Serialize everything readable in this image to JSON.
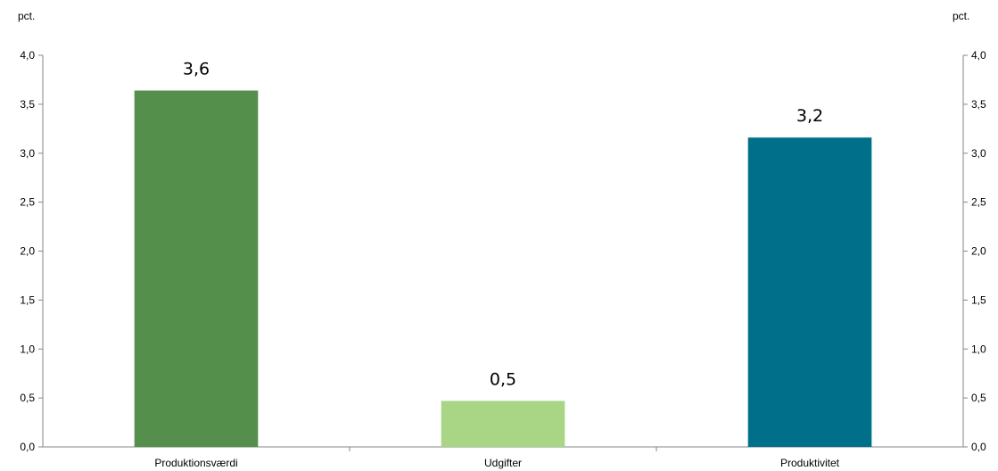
{
  "chart_data": {
    "type": "bar",
    "unit_left": "pct.",
    "unit_right": "pct.",
    "categories": [
      "Produktionsværdi",
      "Udgifter",
      "Produktivitet"
    ],
    "values": [
      3.64,
      0.47,
      3.16
    ],
    "data_labels": [
      "3,6",
      "0,5",
      "3,2"
    ],
    "colors": [
      "#548f4c",
      "#a9d684",
      "#00708a"
    ],
    "ylim": [
      0,
      4.0
    ],
    "yticks": [
      "0,0",
      "0,5",
      "1,0",
      "1,5",
      "2,0",
      "2,5",
      "3,0",
      "3,5",
      "4,0"
    ],
    "ytick_values": [
      0,
      0.5,
      1.0,
      1.5,
      2.0,
      2.5,
      3.0,
      3.5,
      4.0
    ],
    "secondary_axis": true,
    "grid": false,
    "title": "",
    "xlabel": "",
    "ylabel": ""
  }
}
